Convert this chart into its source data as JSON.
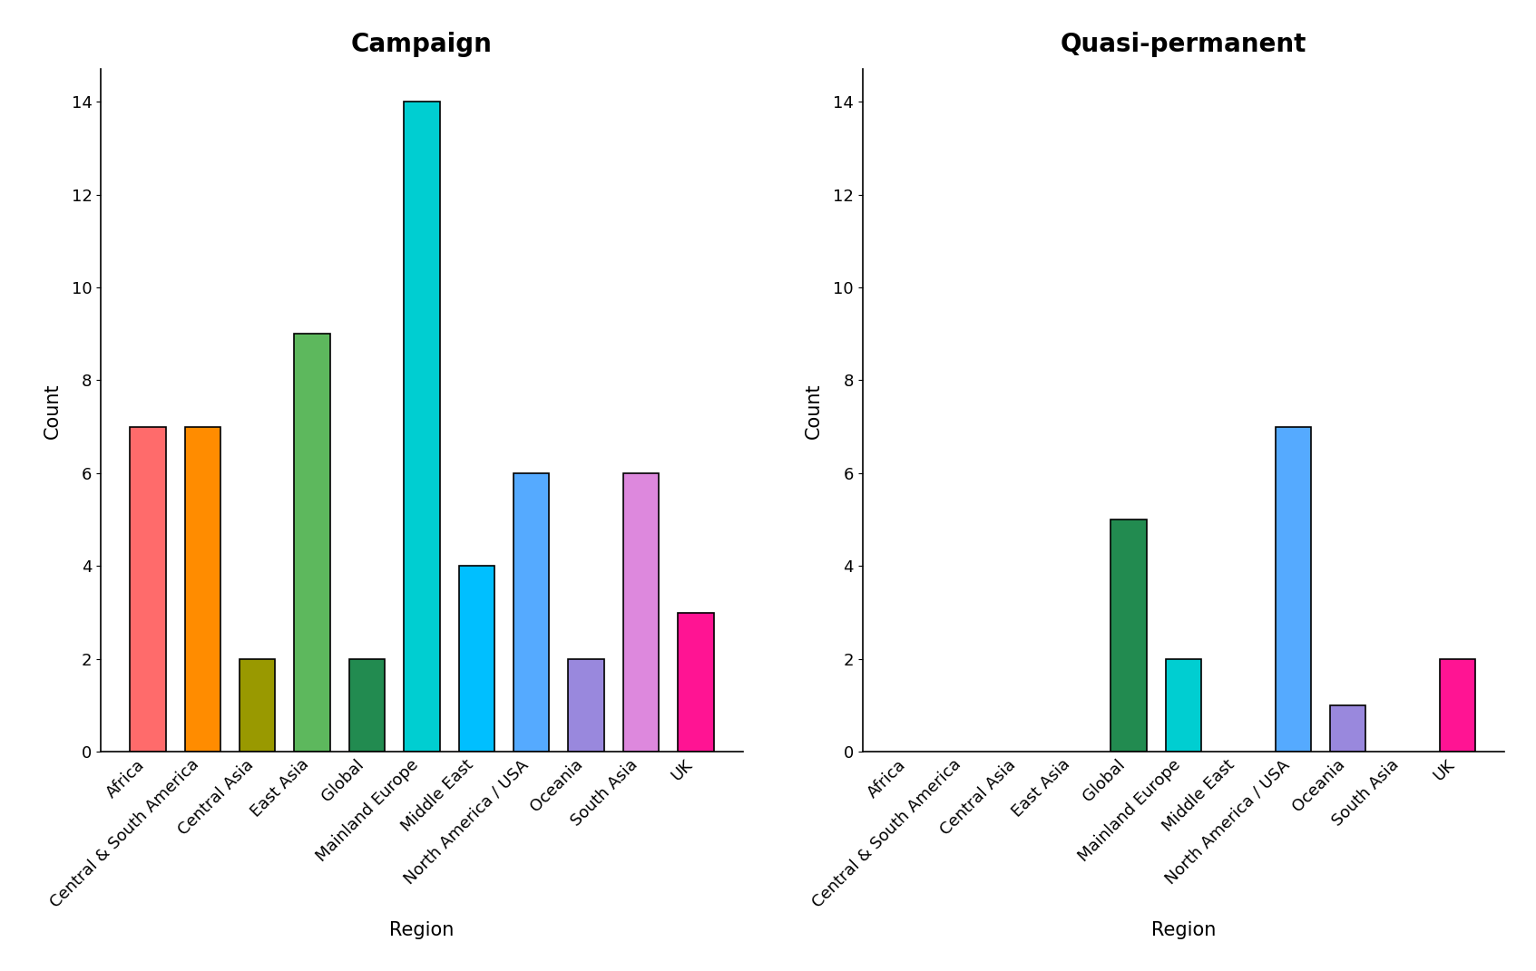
{
  "categories": [
    "Africa",
    "Central & South America",
    "Central Asia",
    "East Asia",
    "Global",
    "Mainland Europe",
    "Middle East",
    "North America / USA",
    "Oceania",
    "South Asia",
    "UK"
  ],
  "campaign_values": [
    7,
    7,
    2,
    9,
    2,
    14,
    4,
    6,
    2,
    6,
    3
  ],
  "quasi_values": [
    0,
    0,
    0,
    0,
    5,
    2,
    0,
    7,
    1,
    0,
    2
  ],
  "bar_colors": [
    "#FF6B6B",
    "#FF8C00",
    "#999900",
    "#5DB85D",
    "#228B50",
    "#00CED1",
    "#00BFFF",
    "#55AAFF",
    "#9988DD",
    "#DD88DD",
    "#FF1493"
  ],
  "title_campaign": "Campaign",
  "title_quasi": "Quasi-permanent",
  "xlabel": "Region",
  "ylabel": "Count",
  "ylim": [
    0,
    14.7
  ],
  "yticks": [
    0,
    2,
    4,
    6,
    8,
    10,
    12,
    14
  ],
  "background_color": "#FFFFFF",
  "title_fontsize": 20,
  "label_fontsize": 15,
  "tick_fontsize": 13,
  "bar_width": 0.65
}
